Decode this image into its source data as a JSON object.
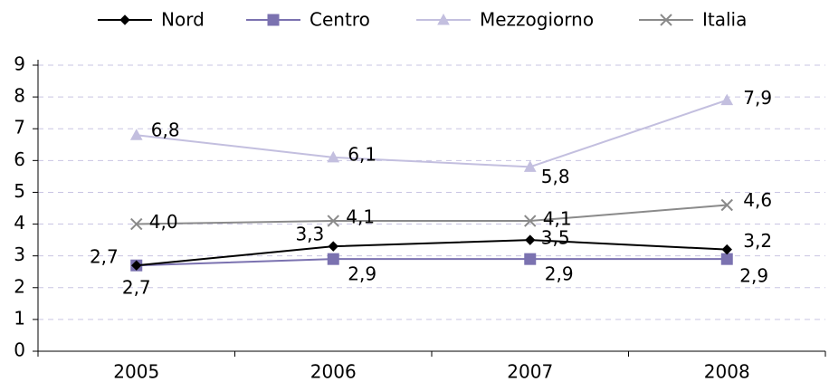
{
  "chart_data": {
    "type": "line",
    "categories": [
      "2005",
      "2006",
      "2007",
      "2008"
    ],
    "series": [
      {
        "name": "Nord",
        "color": "#000000",
        "marker": "diamond",
        "values": [
          2.7,
          3.3,
          3.5,
          3.2
        ],
        "value_labels": [
          "2,7",
          "3,3",
          "3,5",
          "3,2"
        ]
      },
      {
        "name": "Centro",
        "color": "#7b72b0",
        "marker": "square",
        "values": [
          2.7,
          2.9,
          2.9,
          2.9
        ],
        "value_labels": [
          "2,7",
          "2,9",
          "2,9",
          "2,9"
        ]
      },
      {
        "name": "Mezzogiorno",
        "color": "#c3bfdf",
        "marker": "triangle",
        "values": [
          6.8,
          6.1,
          5.8,
          7.9
        ],
        "value_labels": [
          "6,8",
          "6,1",
          "5,8",
          "7,9"
        ]
      },
      {
        "name": "Italia",
        "color": "#8a8a8a",
        "marker": "x",
        "values": [
          4.0,
          4.1,
          4.1,
          4.6
        ],
        "value_labels": [
          "4,0",
          "4,1",
          "4,1",
          "4,6"
        ]
      }
    ],
    "ylim": [
      0,
      9
    ],
    "yticks": [
      0,
      1,
      2,
      3,
      4,
      5,
      6,
      7,
      8,
      9
    ],
    "grid": true,
    "legend": "top"
  }
}
